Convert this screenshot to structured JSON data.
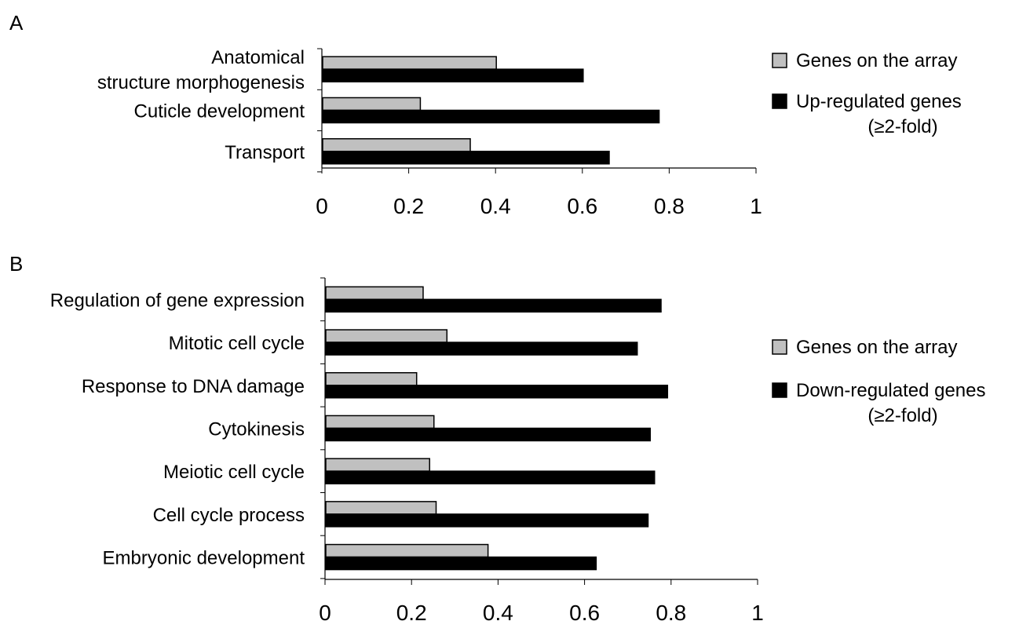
{
  "chart_data": [
    {
      "type": "bar",
      "orientation": "horizontal",
      "panel": "A",
      "categories": [
        [
          "Anatomical",
          "structure morphogenesis"
        ],
        [
          "Cuticle development"
        ],
        [
          "Transport"
        ]
      ],
      "series": [
        {
          "name": "Genes on the array",
          "color": "#c0c0c0",
          "values": [
            0.4,
            0.225,
            0.34
          ]
        },
        {
          "name": "Up-regulated genes",
          "name_line2": "(≥2-fold)",
          "color": "#000000",
          "values": [
            0.6,
            0.775,
            0.66
          ]
        }
      ],
      "xlim": [
        0,
        1
      ],
      "ticks": [
        "0",
        "0.2",
        "0.4",
        "0.6",
        "0.8",
        "1"
      ],
      "tick_values": [
        0,
        0.2,
        0.4,
        0.6,
        0.8,
        1
      ],
      "grid": false,
      "legend_position": "right"
    },
    {
      "type": "bar",
      "orientation": "horizontal",
      "panel": "B",
      "categories": [
        [
          "Regulation of gene expression"
        ],
        [
          "Mitotic cell cycle"
        ],
        [
          "Response to DNA damage"
        ],
        [
          "Cytokinesis"
        ],
        [
          "Meiotic cell cycle"
        ],
        [
          "Cell cycle process"
        ],
        [
          "Embryonic development"
        ]
      ],
      "series": [
        {
          "name": "Genes on the array",
          "color": "#c0c0c0",
          "values": [
            0.225,
            0.28,
            0.21,
            0.25,
            0.24,
            0.255,
            0.375
          ]
        },
        {
          "name": "Down-regulated genes",
          "name_line2": "(≥2-fold)",
          "color": "#000000",
          "values": [
            0.775,
            0.72,
            0.79,
            0.75,
            0.76,
            0.745,
            0.625
          ]
        }
      ],
      "xlim": [
        0,
        1
      ],
      "ticks": [
        "0",
        "0.2",
        "0.4",
        "0.6",
        "0.8",
        "1"
      ],
      "tick_values": [
        0,
        0.2,
        0.4,
        0.6,
        0.8,
        1
      ],
      "grid": false,
      "legend_position": "right"
    }
  ]
}
